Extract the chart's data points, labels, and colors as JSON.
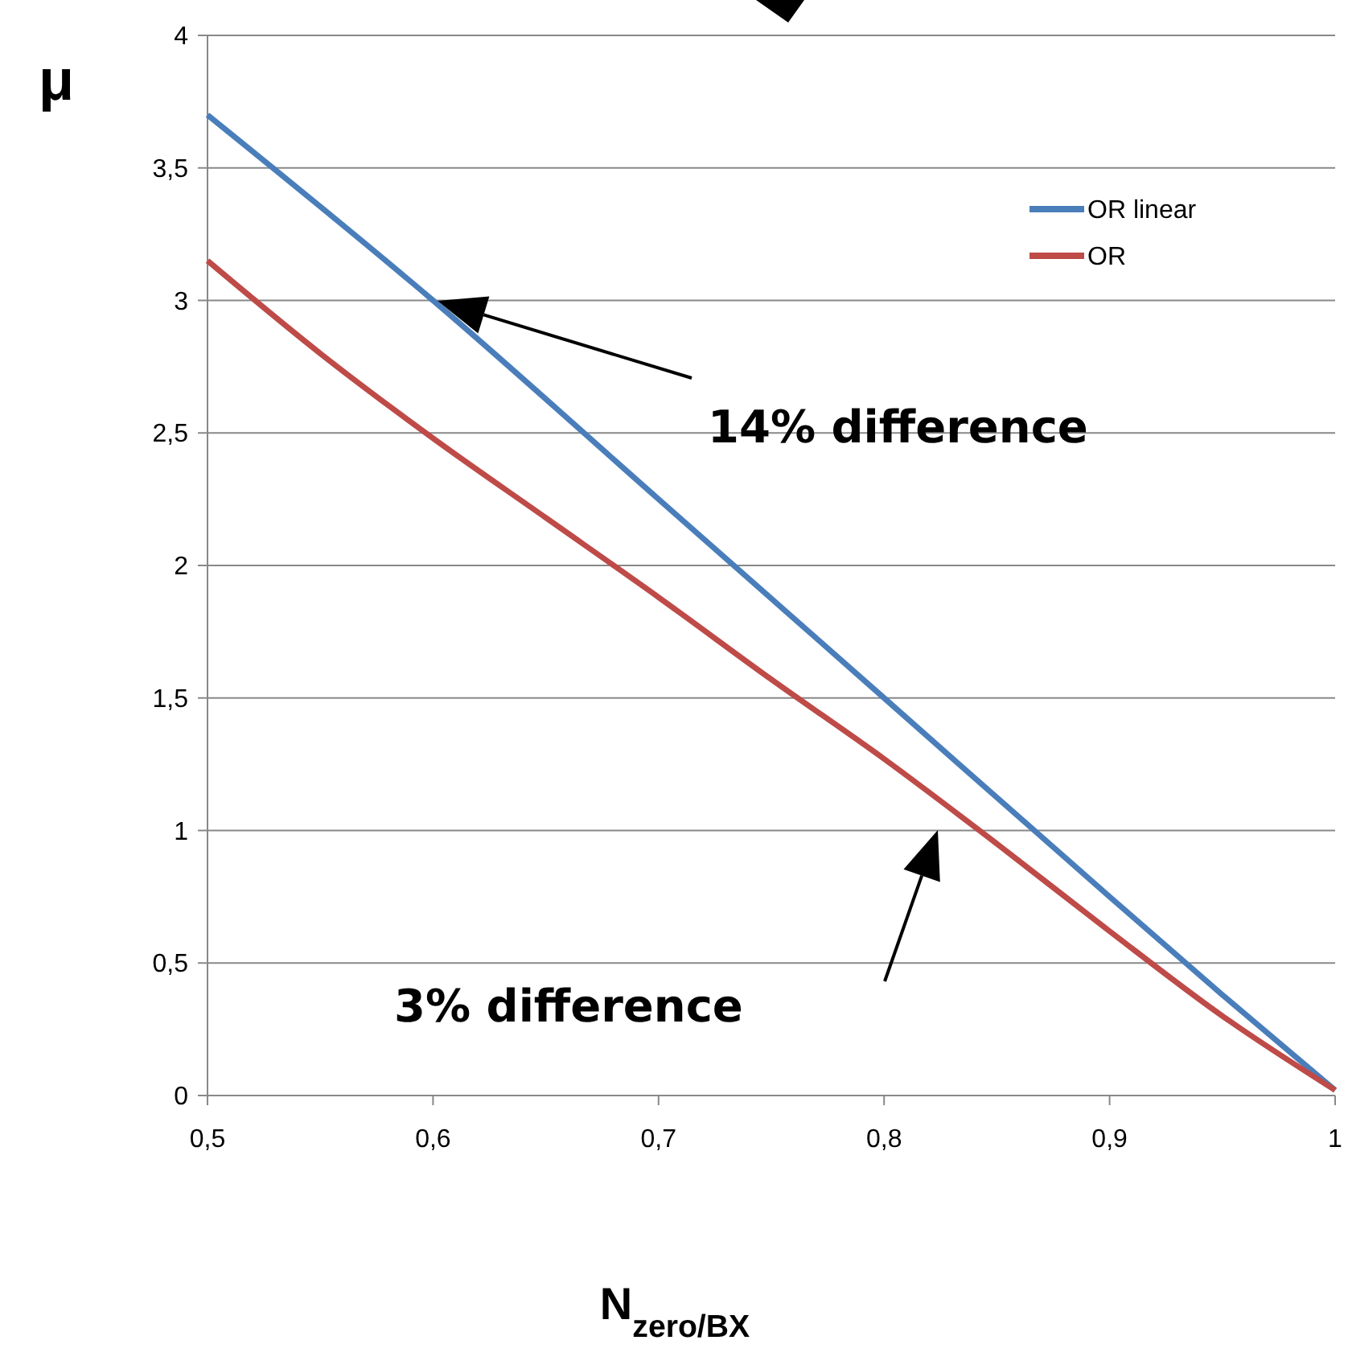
{
  "chart_data": {
    "type": "line",
    "xlabel": "N$_{zero/BX}$",
    "ylabel": "μ",
    "xlim": [
      0.5,
      1
    ],
    "ylim": [
      0,
      4
    ],
    "xticks": [
      {
        "value": 0.5,
        "label": "0,5"
      },
      {
        "value": 0.6,
        "label": "0,6"
      },
      {
        "value": 0.7,
        "label": "0,7"
      },
      {
        "value": 0.8,
        "label": "0,8"
      },
      {
        "value": 0.9,
        "label": "0,9"
      },
      {
        "value": 1,
        "label": "1"
      }
    ],
    "yticks": [
      0,
      {
        "value": 0.5,
        "label": "0,5"
      },
      1,
      {
        "value": 1.5,
        "label": "1,5"
      },
      2,
      {
        "value": 2.5,
        "label": "2,5"
      },
      3,
      {
        "value": 3.5,
        "label": "3,5"
      },
      4
    ],
    "grid": "y",
    "legend": "top right",
    "marker": "none",
    "line_style": "solid",
    "series": [
      {
        "name": "OR linear",
        "color": "#4a7ebb",
        "x": [
          0.5,
          0.6,
          0.7,
          0.8,
          0.9,
          0.95,
          1
        ],
        "values": [
          3.7,
          3.0,
          2.25,
          1.5,
          0.75,
          0.38,
          0.02
        ]
      },
      {
        "name": "OR",
        "color": "#be4b48",
        "x": [
          0.5,
          0.55,
          0.6,
          0.65,
          0.7,
          0.75,
          0.8,
          0.85,
          0.9,
          0.95,
          1
        ],
        "values": [
          3.15,
          2.8,
          2.48,
          2.18,
          1.88,
          1.57,
          1.27,
          0.95,
          0.62,
          0.3,
          0.02
        ]
      }
    ],
    "annotations": [
      "14% difference",
      "3% difference"
    ]
  }
}
